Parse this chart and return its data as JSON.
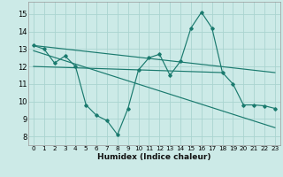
{
  "xlabel": "Humidex (Indice chaleur)",
  "bg_color": "#cceae7",
  "grid_color": "#aad4d0",
  "line_color": "#1a7a6e",
  "xlim": [
    -0.5,
    23.5
  ],
  "ylim": [
    7.5,
    15.7
  ],
  "yticks": [
    8,
    9,
    10,
    11,
    12,
    13,
    14,
    15
  ],
  "xticks": [
    0,
    1,
    2,
    3,
    4,
    5,
    6,
    7,
    8,
    9,
    10,
    11,
    12,
    13,
    14,
    15,
    16,
    17,
    18,
    19,
    20,
    21,
    22,
    23
  ],
  "series1_x": [
    0,
    1,
    2,
    3,
    4,
    5,
    6,
    7,
    8,
    9,
    10,
    11,
    12,
    13,
    14,
    15,
    16,
    17,
    18,
    19,
    20,
    21,
    22,
    23
  ],
  "series1_y": [
    13.2,
    13.0,
    12.2,
    12.6,
    12.0,
    9.8,
    9.2,
    8.9,
    8.1,
    9.6,
    11.8,
    12.5,
    12.7,
    11.5,
    12.3,
    14.2,
    15.1,
    14.2,
    11.65,
    11.0,
    9.8,
    9.8,
    9.75,
    9.6
  ],
  "trend1_x": [
    0,
    23
  ],
  "trend1_y": [
    13.2,
    11.65
  ],
  "trend2_x": [
    0,
    23
  ],
  "trend2_y": [
    12.9,
    8.5
  ],
  "flat_line_x": [
    0,
    18
  ],
  "flat_line_y": [
    12.0,
    11.65
  ]
}
